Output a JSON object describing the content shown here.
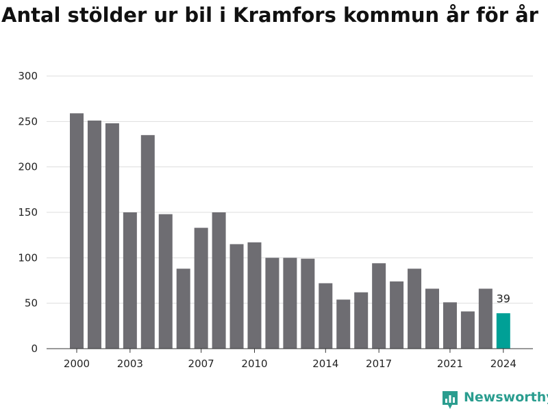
{
  "title": "Antal stölder ur bil i Kramfors kommun år för år",
  "brand": {
    "name": "Newsworthy",
    "icon": "newsworthy-logo-icon",
    "color": "#2a9d8f"
  },
  "colors": {
    "bar": "#6e6d72",
    "highlight": "#00a096",
    "grid": "#dddddd",
    "axis": "#333333"
  },
  "chart_data": {
    "type": "bar",
    "title": "Antal stölder ur bil i Kramfors kommun år för år",
    "xlabel": "",
    "ylabel": "",
    "ylim": [
      0,
      300
    ],
    "yticks": [
      0,
      50,
      100,
      150,
      200,
      250,
      300
    ],
    "xtick_labels": [
      "2000",
      "2003",
      "2007",
      "2010",
      "2014",
      "2017",
      "2021",
      "2024"
    ],
    "grid": true,
    "categories": [
      "2000",
      "2001",
      "2002",
      "2003",
      "2004",
      "2005",
      "2006",
      "2007",
      "2008",
      "2009",
      "2010",
      "2011",
      "2012",
      "2013",
      "2014",
      "2015",
      "2016",
      "2017",
      "2018",
      "2019",
      "2020",
      "2021",
      "2022",
      "2023",
      "2024"
    ],
    "values": [
      259,
      251,
      248,
      150,
      235,
      148,
      88,
      133,
      150,
      115,
      117,
      100,
      100,
      99,
      72,
      54,
      62,
      94,
      74,
      88,
      66,
      51,
      41,
      66,
      39
    ],
    "highlight_category": "2024",
    "data_labels": [
      {
        "category": "2024",
        "text": "39"
      }
    ]
  }
}
